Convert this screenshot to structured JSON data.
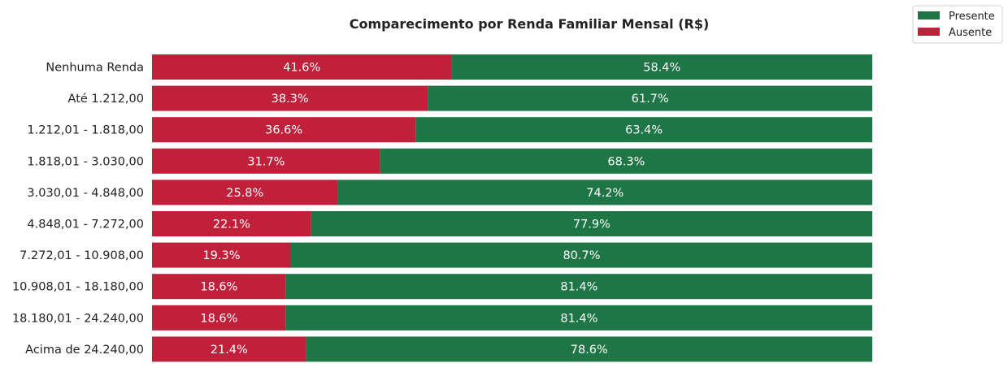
{
  "chart_data": {
    "type": "bar",
    "orientation": "horizontal",
    "stacked": true,
    "title": "Comparecimento por Renda Familiar Mensal (R$)",
    "xlabel": "",
    "ylabel": "",
    "xlim": [
      0,
      100
    ],
    "grid": false,
    "legend_position": "top-right",
    "categories": [
      "Nenhuma Renda",
      "Até 1.212,00",
      "1.212,01 - 1.818,00",
      "1.818,01 - 3.030,00",
      "3.030,01 - 4.848,00",
      "4.848,01 - 7.272,00",
      "7.272,01 - 10.908,00",
      "10.908,01 - 18.180,00",
      "18.180,01 - 24.240,00",
      "Acima de 24.240,00"
    ],
    "series": [
      {
        "name": "Ausente",
        "color": "#c1203a",
        "values": [
          41.6,
          38.3,
          36.6,
          31.7,
          25.8,
          22.1,
          19.3,
          18.6,
          18.6,
          21.4
        ],
        "labels": [
          "41.6%",
          "38.3%",
          "36.6%",
          "31.7%",
          "25.8%",
          "22.1%",
          "19.3%",
          "18.6%",
          "18.6%",
          "21.4%"
        ]
      },
      {
        "name": "Presente",
        "color": "#1e7545",
        "values": [
          58.4,
          61.7,
          63.4,
          68.3,
          74.2,
          77.9,
          80.7,
          81.4,
          81.4,
          78.6
        ],
        "labels": [
          "58.4%",
          "61.7%",
          "63.4%",
          "68.3%",
          "74.2%",
          "77.9%",
          "80.7%",
          "81.4%",
          "81.4%",
          "78.6%"
        ]
      }
    ]
  },
  "legend": {
    "items": [
      {
        "label": "Presente",
        "color": "#1e7545"
      },
      {
        "label": "Ausente",
        "color": "#c1203a"
      }
    ]
  }
}
